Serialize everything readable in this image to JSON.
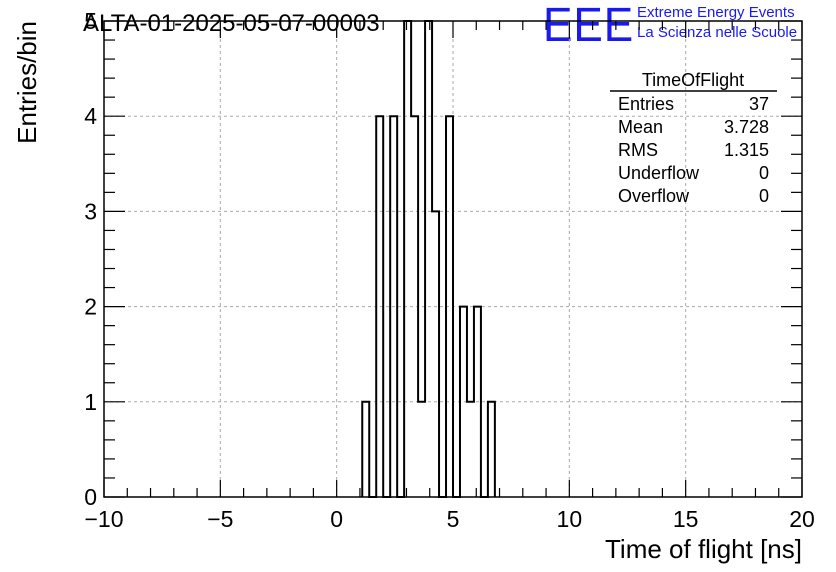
{
  "header": {
    "title": "ALTA-01-2025-05-07-00003",
    "logo_mark": "EEE",
    "logo_line1": "Extreme Energy Events",
    "logo_line2": "La Scienza nelle Scuole",
    "logo_color": "#1a1aee"
  },
  "stats_box": {
    "title": "TimeOfFlight",
    "rows": [
      {
        "label": "Entries",
        "value": "37"
      },
      {
        "label": "Mean",
        "value": "3.728"
      },
      {
        "label": "RMS",
        "value": "1.315"
      },
      {
        "label": "Underflow",
        "value": "0"
      },
      {
        "label": "Overflow",
        "value": "0"
      }
    ]
  },
  "chart_data": {
    "type": "bar",
    "title": "ALTA-01-2025-05-07-00003",
    "xlabel": "Time of flight [ns]",
    "ylabel": "Entries/bin",
    "xlim": [
      -10,
      20
    ],
    "ylim": [
      0,
      5
    ],
    "xticks": [
      "−10",
      "−5",
      "0",
      "5",
      "10",
      "15",
      "20"
    ],
    "xtick_values": [
      -10,
      -5,
      0,
      5,
      10,
      15,
      20
    ],
    "yticks": [
      "0",
      "1",
      "2",
      "3",
      "4",
      "5"
    ],
    "ytick_values": [
      0,
      1,
      2,
      3,
      4,
      5
    ],
    "grid": true,
    "bins": {
      "edges": [
        1.1,
        1.4,
        1.7,
        2.0,
        2.3,
        2.6,
        2.9,
        3.2,
        3.5,
        3.8,
        4.1,
        4.4,
        4.7,
        5.0,
        5.3,
        5.6,
        5.9,
        6.2,
        6.5,
        6.8
      ],
      "counts": [
        1,
        0,
        4,
        0,
        4,
        0,
        5,
        4,
        1,
        5,
        3,
        0,
        4,
        0,
        2,
        1,
        2,
        0,
        1
      ]
    }
  }
}
